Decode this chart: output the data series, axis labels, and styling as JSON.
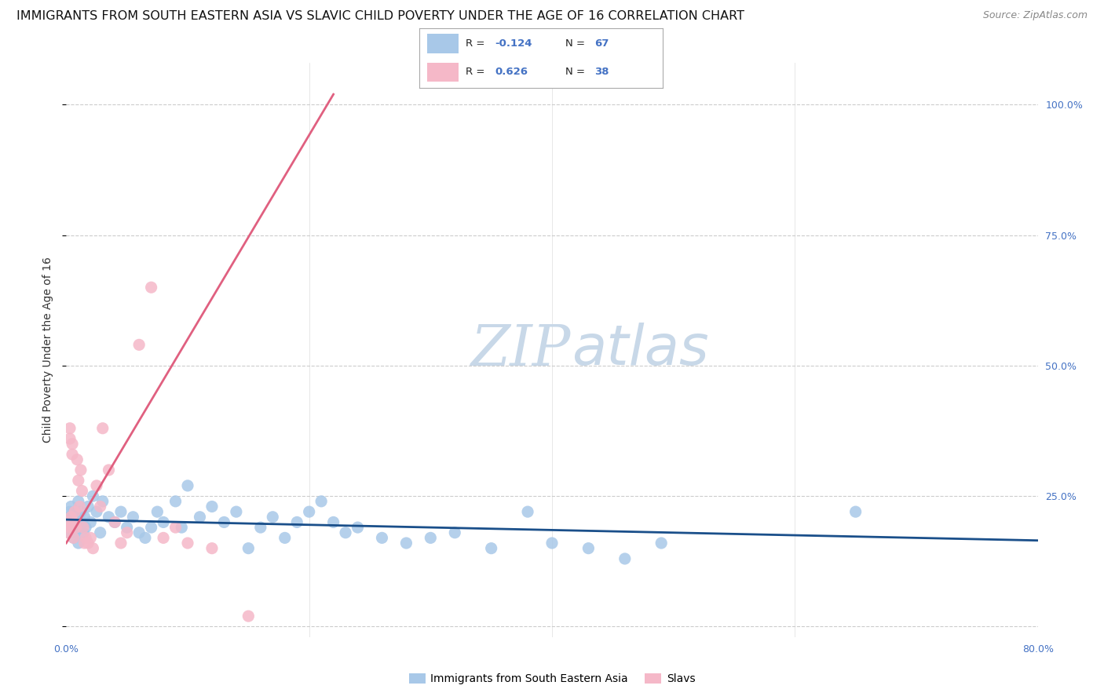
{
  "title": "IMMIGRANTS FROM SOUTH EASTERN ASIA VS SLAVIC CHILD POVERTY UNDER THE AGE OF 16 CORRELATION CHART",
  "source": "Source: ZipAtlas.com",
  "ylabel": "Child Poverty Under the Age of 16",
  "ytick_values": [
    0.0,
    0.25,
    0.5,
    0.75,
    1.0
  ],
  "ytick_labels": [
    "",
    "25.0%",
    "50.0%",
    "75.0%",
    "100.0%"
  ],
  "xlim": [
    0.0,
    0.8
  ],
  "ylim": [
    -0.02,
    1.08
  ],
  "watermark_zip": "ZIP",
  "watermark_atlas": "atlas",
  "legend_R1": "-0.124",
  "legend_N1": "67",
  "legend_R2": "0.626",
  "legend_N2": "38",
  "legend_label1": "Immigrants from South Eastern Asia",
  "legend_label2": "Slavs",
  "blue_color": "#a8c8e8",
  "blue_line_color": "#1a4f8a",
  "pink_color": "#f5b8c8",
  "pink_line_color": "#e06080",
  "blue_scatter_x": [
    0.001,
    0.002,
    0.003,
    0.003,
    0.004,
    0.004,
    0.005,
    0.005,
    0.006,
    0.006,
    0.007,
    0.007,
    0.008,
    0.008,
    0.009,
    0.01,
    0.01,
    0.011,
    0.012,
    0.013,
    0.014,
    0.015,
    0.016,
    0.018,
    0.02,
    0.022,
    0.025,
    0.028,
    0.03,
    0.035,
    0.04,
    0.045,
    0.05,
    0.055,
    0.06,
    0.065,
    0.07,
    0.075,
    0.08,
    0.09,
    0.095,
    0.1,
    0.11,
    0.12,
    0.13,
    0.14,
    0.15,
    0.16,
    0.17,
    0.18,
    0.19,
    0.2,
    0.21,
    0.22,
    0.23,
    0.24,
    0.26,
    0.28,
    0.3,
    0.32,
    0.35,
    0.38,
    0.4,
    0.43,
    0.46,
    0.49,
    0.65
  ],
  "blue_scatter_y": [
    0.19,
    0.21,
    0.18,
    0.22,
    0.2,
    0.23,
    0.19,
    0.21,
    0.17,
    0.2,
    0.22,
    0.18,
    0.21,
    0.19,
    0.2,
    0.16,
    0.24,
    0.19,
    0.22,
    0.2,
    0.18,
    0.21,
    0.19,
    0.23,
    0.2,
    0.25,
    0.22,
    0.18,
    0.24,
    0.21,
    0.2,
    0.22,
    0.19,
    0.21,
    0.18,
    0.17,
    0.19,
    0.22,
    0.2,
    0.24,
    0.19,
    0.27,
    0.21,
    0.23,
    0.2,
    0.22,
    0.15,
    0.19,
    0.21,
    0.17,
    0.2,
    0.22,
    0.24,
    0.2,
    0.18,
    0.19,
    0.17,
    0.16,
    0.17,
    0.18,
    0.15,
    0.22,
    0.16,
    0.15,
    0.13,
    0.16,
    0.22
  ],
  "pink_scatter_x": [
    0.001,
    0.002,
    0.002,
    0.003,
    0.003,
    0.004,
    0.004,
    0.005,
    0.005,
    0.006,
    0.006,
    0.007,
    0.008,
    0.009,
    0.01,
    0.011,
    0.012,
    0.013,
    0.014,
    0.015,
    0.016,
    0.018,
    0.02,
    0.022,
    0.025,
    0.028,
    0.03,
    0.035,
    0.04,
    0.045,
    0.05,
    0.06,
    0.07,
    0.08,
    0.09,
    0.1,
    0.12,
    0.15
  ],
  "pink_scatter_y": [
    0.18,
    0.19,
    0.2,
    0.36,
    0.38,
    0.19,
    0.21,
    0.33,
    0.35,
    0.17,
    0.2,
    0.22,
    0.19,
    0.32,
    0.28,
    0.23,
    0.3,
    0.26,
    0.19,
    0.16,
    0.17,
    0.16,
    0.17,
    0.15,
    0.27,
    0.23,
    0.38,
    0.3,
    0.2,
    0.16,
    0.18,
    0.54,
    0.65,
    0.17,
    0.19,
    0.16,
    0.15,
    0.02
  ],
  "blue_line_x": [
    0.0,
    0.8
  ],
  "blue_line_y": [
    0.205,
    0.165
  ],
  "pink_line_x": [
    0.0,
    0.22
  ],
  "pink_line_y": [
    0.16,
    1.02
  ],
  "background_color": "#ffffff",
  "grid_color": "#cccccc",
  "title_fontsize": 11.5,
  "ylabel_fontsize": 10,
  "tick_fontsize": 9,
  "legend_fontsize": 10,
  "source_fontsize": 9,
  "watermark_fontsize_zip": 52,
  "watermark_fontsize_atlas": 52
}
